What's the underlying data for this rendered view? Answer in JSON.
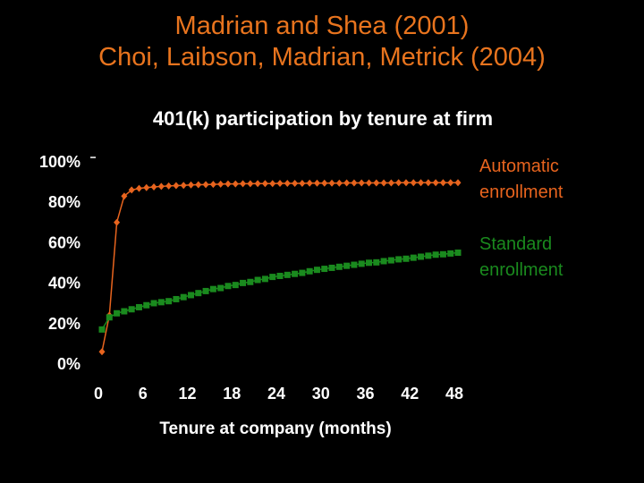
{
  "header": {
    "line1": "Madrian and Shea (2001)",
    "line2": "Choi, Laibson, Madrian, Metrick (2004)",
    "color": "#e8741e"
  },
  "chart_data": {
    "type": "line",
    "title": "401(k) participation by tenure at firm",
    "xlabel": "Tenure at company (months)",
    "ylabel": "",
    "xlim": [
      0,
      48
    ],
    "ylim": [
      0,
      1
    ],
    "x_ticks": [
      "0",
      "6",
      "12",
      "18",
      "24",
      "30",
      "36",
      "42",
      "48"
    ],
    "y_ticks": [
      "0%",
      "20%",
      "40%",
      "60%",
      "80%",
      "100%"
    ],
    "grid": false,
    "series": [
      {
        "name_lines": [
          "Automatic",
          "enrollment"
        ],
        "color": "#e8641e",
        "marker": "diamond",
        "x": [
          0,
          1,
          2,
          3,
          4,
          5,
          6,
          7,
          8,
          9,
          10,
          11,
          12,
          13,
          14,
          15,
          16,
          17,
          18,
          19,
          20,
          21,
          22,
          23,
          24,
          25,
          26,
          27,
          28,
          29,
          30,
          31,
          32,
          33,
          34,
          35,
          36,
          37,
          38,
          39,
          40,
          41,
          42,
          43,
          44,
          45,
          46,
          47,
          48
        ],
        "values": [
          0.03,
          0.21,
          0.67,
          0.8,
          0.83,
          0.838,
          0.842,
          0.845,
          0.848,
          0.85,
          0.852,
          0.853,
          0.855,
          0.856,
          0.857,
          0.858,
          0.859,
          0.86,
          0.86,
          0.861,
          0.861,
          0.862,
          0.862,
          0.862,
          0.863,
          0.863,
          0.863,
          0.863,
          0.864,
          0.864,
          0.864,
          0.864,
          0.864,
          0.865,
          0.865,
          0.865,
          0.865,
          0.865,
          0.865,
          0.865,
          0.866,
          0.866,
          0.866,
          0.866,
          0.866,
          0.866,
          0.866,
          0.866,
          0.866
        ]
      },
      {
        "name_lines": [
          "Standard",
          "enrollment"
        ],
        "color": "#1a8a1e",
        "marker": "square",
        "x": [
          0,
          1,
          2,
          3,
          4,
          5,
          6,
          7,
          8,
          9,
          10,
          11,
          12,
          13,
          14,
          15,
          16,
          17,
          18,
          19,
          20,
          21,
          22,
          23,
          24,
          25,
          26,
          27,
          28,
          29,
          30,
          31,
          32,
          33,
          34,
          35,
          36,
          37,
          38,
          39,
          40,
          41,
          42,
          43,
          44,
          45,
          46,
          47,
          48
        ],
        "values": [
          0.14,
          0.2,
          0.22,
          0.23,
          0.24,
          0.25,
          0.26,
          0.27,
          0.275,
          0.28,
          0.29,
          0.3,
          0.31,
          0.32,
          0.33,
          0.34,
          0.345,
          0.355,
          0.36,
          0.37,
          0.375,
          0.385,
          0.39,
          0.4,
          0.405,
          0.41,
          0.415,
          0.42,
          0.428,
          0.435,
          0.44,
          0.445,
          0.45,
          0.455,
          0.46,
          0.465,
          0.47,
          0.472,
          0.478,
          0.482,
          0.487,
          0.49,
          0.495,
          0.5,
          0.505,
          0.51,
          0.512,
          0.516,
          0.52
        ]
      }
    ]
  }
}
